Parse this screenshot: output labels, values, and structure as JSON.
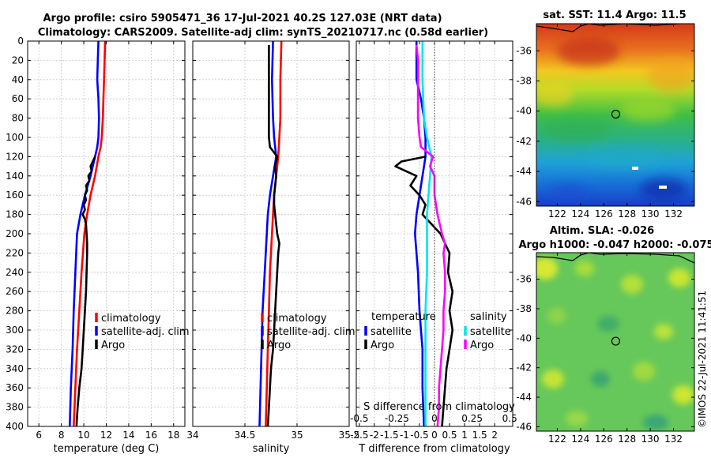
{
  "titles": {
    "line1": "Argo profile: csiro 5905471_36 17-Jul-2021 40.2S 127.03E (NRT data)",
    "line2": "Climatology: CARS2009. Satellite-adj clim: synTS_20210717.nc (0.58d earlier)",
    "sst": "sat. SST: 11.4 Argo: 11.5",
    "sla1": "Altim. SLA: -0.026",
    "sla2": "Argo h1000: -0.047 h2000: -0.075"
  },
  "credit": "©IMOS 22-Jul-2021 11:41:51",
  "colors": {
    "clim": "#ff0000",
    "sat": "#0000ff",
    "argo": "#000000",
    "sal_sat": "#00e5ee",
    "sal_argo": "#ff00ff",
    "zero": "#555555"
  },
  "depth_axis": {
    "min": 0,
    "max": 400,
    "ticks": [
      "0",
      "20",
      "40",
      "60",
      "80",
      "100",
      "120",
      "140",
      "160",
      "180",
      "200",
      "220",
      "240",
      "260",
      "280",
      "300",
      "320",
      "340",
      "360",
      "380",
      "400"
    ]
  },
  "chart_data": [
    {
      "type": "line",
      "id": "temperature",
      "xlabel": "temperature (deg C)",
      "xlim": [
        5,
        19
      ],
      "xticks": [
        "6",
        "8",
        "10",
        "12",
        "14",
        "16",
        "18"
      ],
      "xtick_values": [
        6,
        8,
        10,
        12,
        14,
        16,
        18
      ],
      "legend": [
        "climatology",
        "satellite-adj. clim",
        "Argo"
      ],
      "series": [
        {
          "name": "climatology",
          "color_key": "clim",
          "depth": [
            0,
            20,
            40,
            60,
            80,
            100,
            110,
            120,
            140,
            160,
            180,
            200,
            240,
            280,
            320,
            360,
            400
          ],
          "values": [
            11.9,
            11.85,
            11.8,
            11.75,
            11.7,
            11.6,
            11.5,
            11.3,
            11.0,
            10.6,
            10.3,
            10.05,
            9.8,
            9.6,
            9.4,
            9.25,
            9.1
          ]
        },
        {
          "name": "satellite-adj. clim",
          "color_key": "sat",
          "depth": [
            0,
            20,
            40,
            60,
            80,
            100,
            110,
            120,
            140,
            160,
            180,
            200,
            240,
            280,
            320,
            360,
            400
          ],
          "values": [
            11.3,
            11.25,
            11.2,
            11.3,
            11.35,
            11.3,
            11.2,
            11.0,
            10.6,
            10.1,
            9.7,
            9.4,
            9.25,
            9.1,
            9.0,
            8.85,
            8.75
          ]
        },
        {
          "name": "Argo",
          "color_key": "argo",
          "depth": [
            120,
            125,
            130,
            135,
            140,
            145,
            150,
            155,
            160,
            165,
            170,
            175,
            180,
            185,
            190,
            200,
            210,
            220,
            240,
            260,
            280,
            300,
            320,
            340,
            360,
            380,
            400
          ],
          "values": [
            11.0,
            10.8,
            10.6,
            10.7,
            10.4,
            10.5,
            10.2,
            10.3,
            10.1,
            10.2,
            10.0,
            10.1,
            9.9,
            10.1,
            10.2,
            10.25,
            10.3,
            10.3,
            10.25,
            10.2,
            10.1,
            10.0,
            9.9,
            9.8,
            9.6,
            9.45,
            9.35
          ]
        }
      ]
    },
    {
      "type": "line",
      "id": "salinity",
      "xlabel": "salinity",
      "xlim": [
        34,
        35.5
      ],
      "xticks": [
        "34",
        "34.5",
        "35",
        "35.5"
      ],
      "xtick_values": [
        34,
        34.5,
        35,
        35.5
      ],
      "legend": [
        "climatology",
        "satellite-adj. clim",
        "Argo"
      ],
      "series": [
        {
          "name": "climatology",
          "color_key": "clim",
          "depth": [
            0,
            40,
            80,
            100,
            120,
            140,
            160,
            180,
            200,
            240,
            280,
            320,
            360,
            400
          ],
          "values": [
            34.85,
            34.84,
            34.84,
            34.83,
            34.82,
            34.8,
            34.78,
            34.77,
            34.76,
            34.74,
            34.73,
            34.72,
            34.71,
            34.7
          ]
        },
        {
          "name": "satellite-adj. clim",
          "color_key": "sat",
          "depth": [
            0,
            40,
            80,
            100,
            120,
            140,
            160,
            180,
            200,
            240,
            280,
            320,
            360,
            400
          ],
          "values": [
            34.77,
            34.76,
            34.77,
            34.78,
            34.8,
            34.77,
            34.74,
            34.72,
            34.71,
            34.69,
            34.67,
            34.66,
            34.65,
            34.64
          ]
        },
        {
          "name": "Argo",
          "color_key": "argo",
          "depth": [
            4,
            20,
            40,
            60,
            80,
            100,
            110,
            120,
            130,
            140,
            150,
            160,
            170,
            180,
            190,
            200,
            210,
            220,
            240,
            260,
            280,
            300,
            320,
            340,
            360,
            380,
            400
          ],
          "values": [
            34.73,
            34.73,
            34.73,
            34.73,
            34.73,
            34.73,
            34.74,
            34.81,
            34.79,
            34.8,
            34.79,
            34.78,
            34.78,
            34.79,
            34.8,
            34.81,
            34.83,
            34.82,
            34.81,
            34.8,
            34.79,
            34.78,
            34.77,
            34.75,
            34.74,
            34.73,
            34.72
          ]
        }
      ]
    },
    {
      "type": "line",
      "id": "difference",
      "xlabel": "T difference from climatology",
      "xlim": [
        -2.6,
        2.6
      ],
      "xticks": [
        "-2.5",
        "-2",
        "-1.5",
        "-1",
        "-0.5",
        "0",
        "0.5",
        "1",
        "1.5",
        "2"
      ],
      "xtick_values": [
        -2.5,
        -2,
        -1.5,
        -1,
        -0.5,
        0,
        0.5,
        1,
        1.5,
        2
      ],
      "s_axis_label": "S difference from climatology",
      "s_ticks": [
        "-0.5",
        "-0.25",
        "0",
        "0.25",
        "0.5"
      ],
      "s_tick_values": [
        -0.5,
        -0.25,
        0,
        0.25,
        0.5
      ],
      "legend_t": {
        "title": "temperature",
        "items": [
          "satellite",
          "Argo"
        ]
      },
      "legend_s": {
        "title": "salinity",
        "items": [
          "satellite",
          "Argo"
        ]
      },
      "series": [
        {
          "name": "T satellite",
          "color_key": "sat",
          "depth": [
            0,
            20,
            40,
            60,
            80,
            100,
            110,
            120,
            140,
            160,
            180,
            200,
            240,
            280,
            320,
            360,
            400
          ],
          "values": [
            -0.6,
            -0.6,
            -0.6,
            -0.45,
            -0.35,
            -0.3,
            -0.3,
            -0.3,
            -0.4,
            -0.5,
            -0.6,
            -0.65,
            -0.55,
            -0.5,
            -0.4,
            -0.4,
            -0.35
          ]
        },
        {
          "name": "T Argo",
          "color_key": "argo",
          "depth": [
            120,
            125,
            130,
            140,
            150,
            160,
            170,
            180,
            190,
            200,
            220,
            240,
            260,
            280,
            300,
            320,
            340,
            360,
            380,
            400
          ],
          "values": [
            -0.3,
            -1.1,
            -1.3,
            -0.6,
            -0.8,
            -0.5,
            -0.3,
            -0.4,
            -0.1,
            0.2,
            0.5,
            0.45,
            0.6,
            0.5,
            0.6,
            0.5,
            0.4,
            0.35,
            0.3,
            0.25
          ]
        },
        {
          "name": "S satellite",
          "color_key": "sal_sat",
          "depth": [
            0,
            40,
            80,
            100,
            120,
            140,
            160,
            180,
            200,
            240,
            280,
            320,
            360,
            400
          ],
          "values": [
            -0.08,
            -0.08,
            -0.07,
            -0.05,
            -0.02,
            -0.03,
            -0.04,
            -0.05,
            -0.05,
            -0.05,
            -0.06,
            -0.06,
            -0.06,
            -0.06
          ]
        },
        {
          "name": "S Argo",
          "color_key": "sal_argo",
          "depth": [
            4,
            20,
            40,
            60,
            80,
            100,
            110,
            120,
            130,
            140,
            160,
            180,
            200,
            210,
            220,
            240,
            260,
            280,
            300,
            320,
            340,
            360,
            380,
            400
          ],
          "values": [
            -0.12,
            -0.11,
            -0.11,
            -0.11,
            -0.11,
            -0.1,
            -0.09,
            -0.01,
            -0.03,
            0.0,
            0.0,
            0.02,
            0.05,
            0.07,
            0.06,
            0.07,
            0.07,
            0.06,
            0.06,
            0.05,
            0.04,
            0.03,
            0.03,
            0.02
          ]
        }
      ]
    },
    {
      "type": "heatmap",
      "id": "sst_map",
      "title": "sat. SST: 11.4 Argo: 11.5",
      "x_ticks": [
        "122",
        "124",
        "126",
        "128",
        "130",
        "132"
      ],
      "x_tick_values": [
        122,
        124,
        126,
        128,
        130,
        132
      ],
      "y_ticks": [
        "-36",
        "-38",
        "-40",
        "-42",
        "-44",
        "-46"
      ],
      "y_tick_values": [
        -36,
        -38,
        -40,
        -42,
        -44,
        -46
      ],
      "xlim": [
        120.2,
        133.8
      ],
      "ylim": [
        -46.3,
        -34.2
      ],
      "marker": {
        "lon": 127.03,
        "lat": -40.2
      }
    },
    {
      "type": "heatmap",
      "id": "sla_map",
      "title": "Altim. SLA: -0.026",
      "x_ticks": [
        "122",
        "124",
        "126",
        "128",
        "130",
        "132"
      ],
      "x_tick_values": [
        122,
        124,
        126,
        128,
        130,
        132
      ],
      "y_ticks": [
        "-36",
        "-38",
        "-40",
        "-42",
        "-44",
        "-46"
      ],
      "y_tick_values": [
        -36,
        -38,
        -40,
        -42,
        -44,
        -46
      ],
      "xlim": [
        120.2,
        133.8
      ],
      "ylim": [
        -46.3,
        -34.2
      ],
      "marker": {
        "lon": 127.03,
        "lat": -40.2
      }
    }
  ]
}
